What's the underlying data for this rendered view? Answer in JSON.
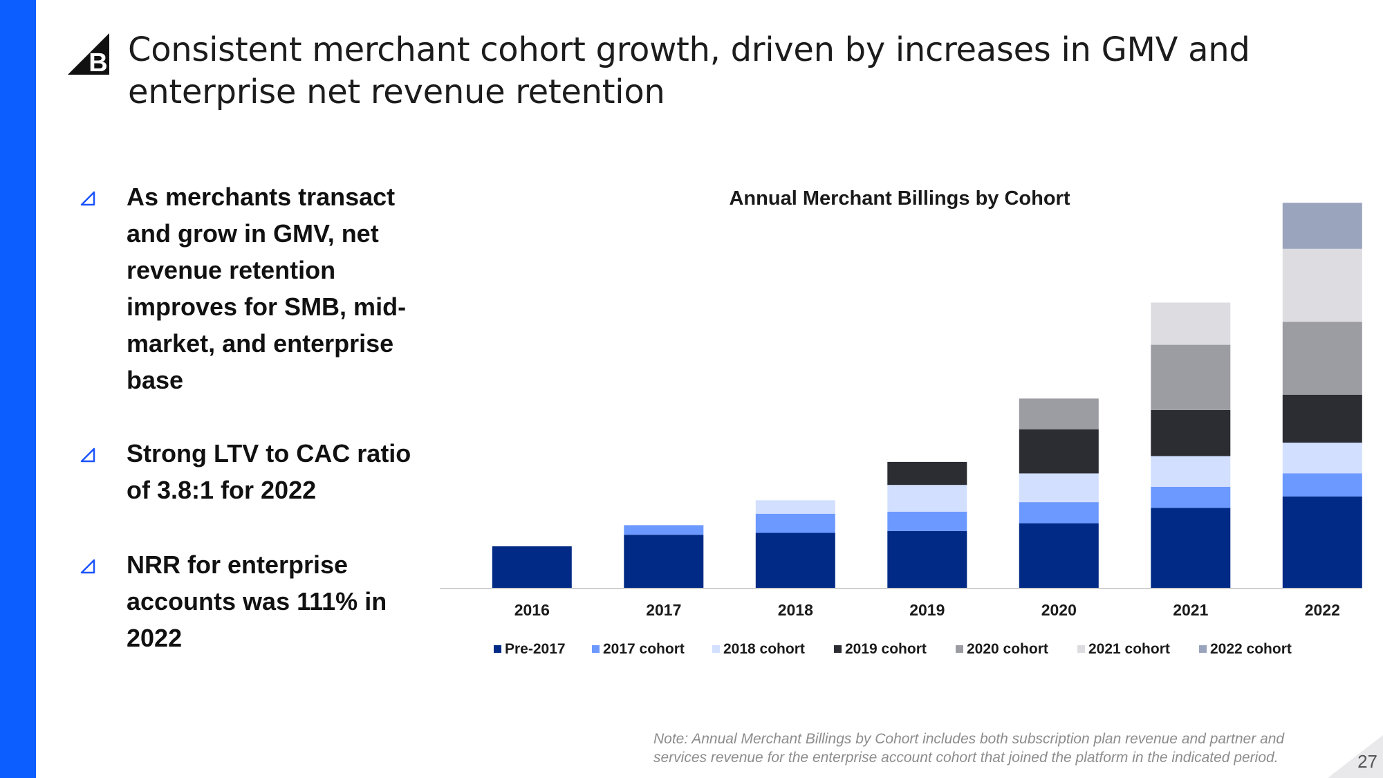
{
  "slide": {
    "title": "Consistent merchant cohort growth, driven by increases in GMV and enterprise net revenue retention",
    "logo_letter": "B",
    "page_number": "27",
    "note": "Note: Annual Merchant Billings by Cohort includes both subscription plan revenue and partner and services revenue for the enterprise account cohort that joined the platform in the indicated period."
  },
  "bullets": [
    {
      "text": "As merchants transact and grow in GMV, net revenue retention improves for SMB, mid-market, and enterprise base"
    },
    {
      "text": "Strong LTV to CAC ratio of 3.8:1 for 2022"
    },
    {
      "text": "NRR for enterprise accounts was 111% in 2022"
    }
  ],
  "colors": {
    "accent_bar": "#0d5eff",
    "bullet_marker": "#1a54ff",
    "series": [
      "#012a86",
      "#6c99ff",
      "#d2dfff",
      "#2b2d33",
      "#9c9ca3",
      "#dcdce1",
      "#9aa4bc"
    ]
  },
  "chart_data": {
    "type": "bar",
    "stacked": true,
    "title": "Annual Merchant Billings by Cohort",
    "xlabel": "",
    "ylabel": "",
    "y_axis_visible": false,
    "grid": false,
    "legend_position": "bottom",
    "ylim": [
      0,
      100
    ],
    "categories": [
      "2016",
      "2017",
      "2018",
      "2019",
      "2020",
      "2021",
      "2022"
    ],
    "series": [
      {
        "name": "Pre-2017",
        "values": [
          11,
          14,
          14.5,
          15,
          17,
          21,
          24
        ]
      },
      {
        "name": "2017 cohort",
        "values": [
          0,
          2.5,
          5,
          5,
          5.5,
          5.5,
          6
        ]
      },
      {
        "name": "2018 cohort",
        "values": [
          0,
          0,
          3.5,
          7,
          7.5,
          8,
          8
        ]
      },
      {
        "name": "2019 cohort",
        "values": [
          0,
          0,
          0,
          6,
          11.5,
          12,
          12.5
        ]
      },
      {
        "name": "2020 cohort",
        "values": [
          0,
          0,
          0,
          0,
          8,
          17,
          19
        ]
      },
      {
        "name": "2021 cohort",
        "values": [
          0,
          0,
          0,
          0,
          0,
          11,
          19
        ]
      },
      {
        "name": "2022 cohort",
        "values": [
          0,
          0,
          0,
          0,
          0,
          0,
          12
        ]
      }
    ]
  }
}
